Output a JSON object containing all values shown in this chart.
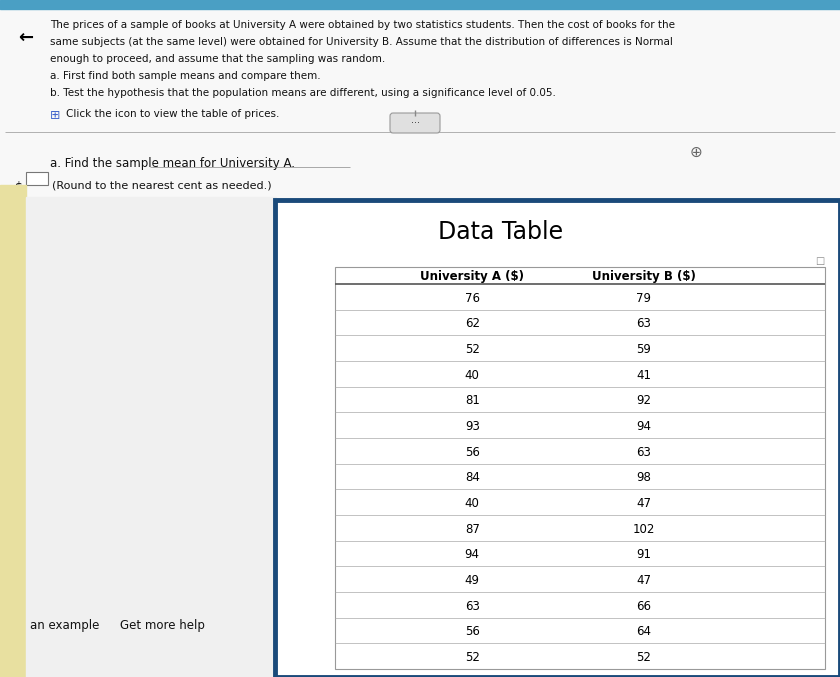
{
  "title_text": "Data Table",
  "header_a": "University A ($)",
  "header_b": "University B ($)",
  "uni_a": [
    76,
    62,
    52,
    40,
    81,
    93,
    56,
    84,
    40,
    87,
    94,
    49,
    63,
    56,
    52
  ],
  "uni_b": [
    79,
    63,
    59,
    41,
    92,
    94,
    63,
    98,
    47,
    102,
    91,
    47,
    66,
    64,
    52
  ],
  "problem_lines": [
    "The prices of a sample of books at University A were obtained by two statistics students. Then the cost of books for the",
    "same subjects (at the same level) were obtained for University B. Assume that the distribution of differences is Normal",
    "enough to proceed, and assume that the sampling was random.",
    "a. First find both sample means and compare them.",
    "b. Test the hypothesis that the population means are different, using a significance level of 0.05."
  ],
  "click_text": "Click the icon to view the table of prices.",
  "question_a": "a. Find the sample mean for University A.",
  "round_text": "(Round to the nearest cent as needed.)",
  "bottom_left1": "an example",
  "bottom_left2": "Get more help",
  "bg_color": "#efefef",
  "bg_top_color": "#f2f2f2",
  "top_bar_color": "#4a9fc4",
  "border_blue_dark": "#1a4a7a",
  "border_blue_light": "#4a7ab5",
  "yellow_bg": "#e8e0a0",
  "text_color": "#111111",
  "grid_icon_color": "#4466cc"
}
